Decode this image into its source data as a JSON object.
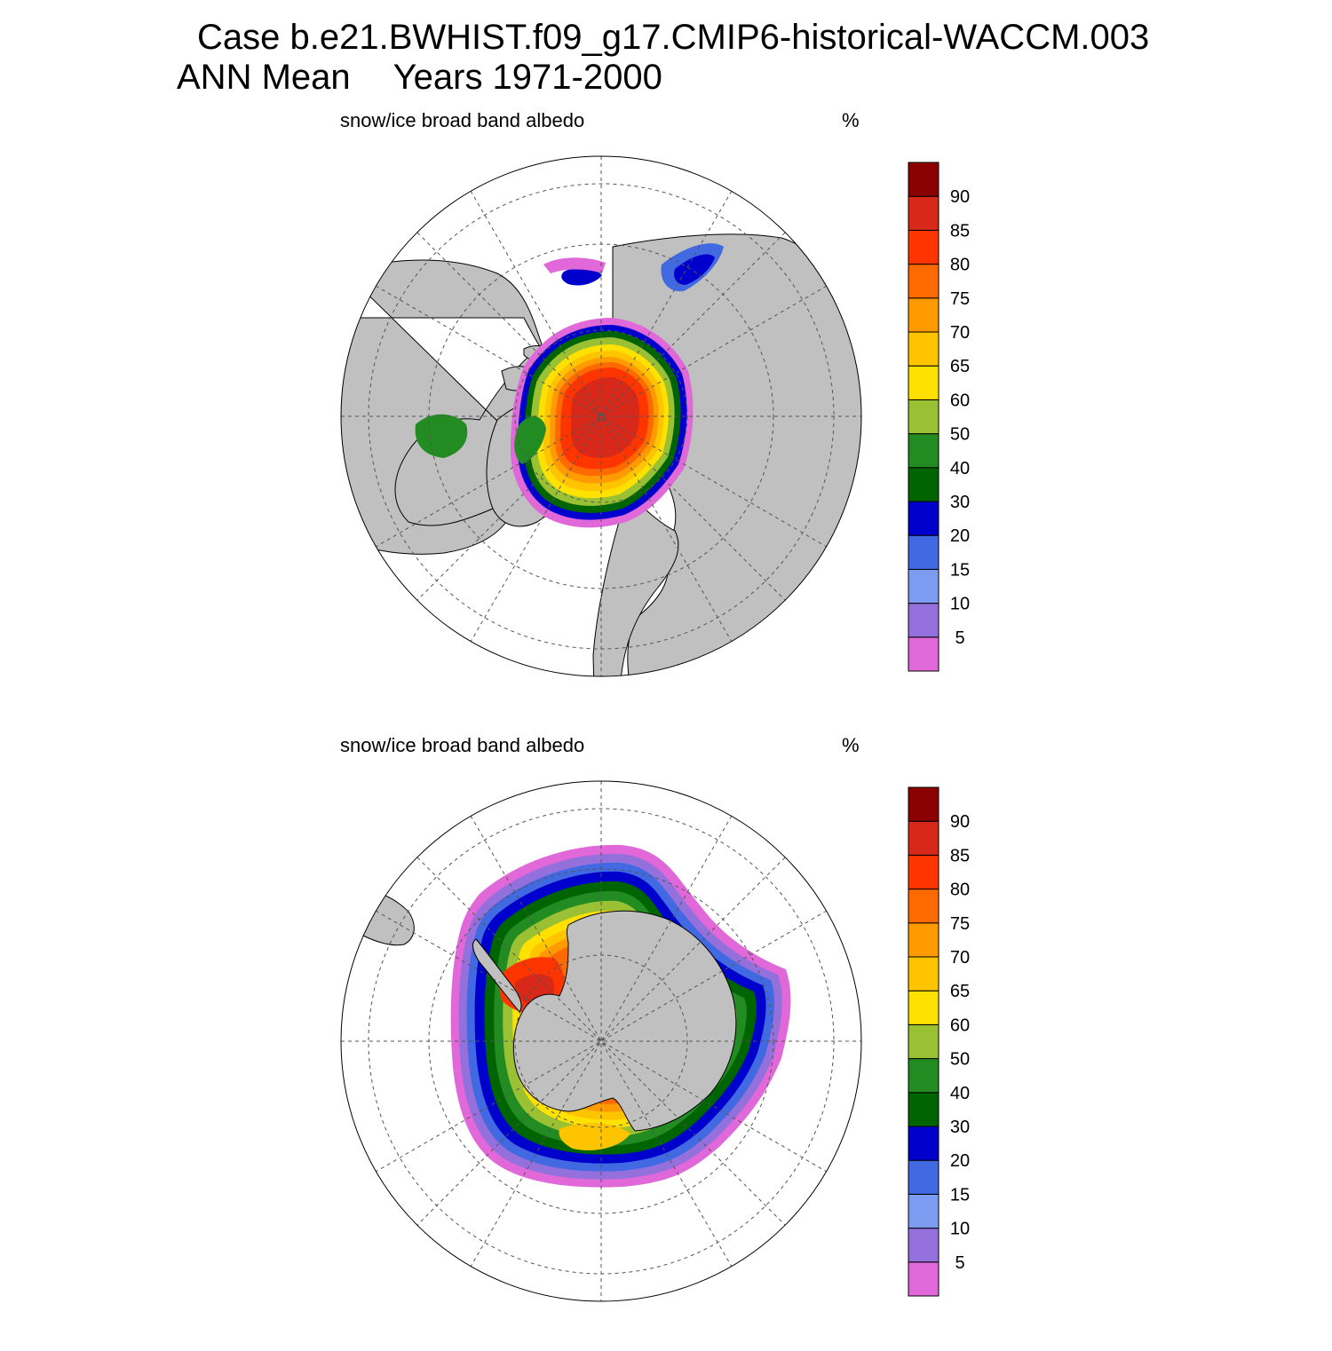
{
  "title": {
    "case": "Case b.e21.BWHIST.f09_g17.CMIP6-historical-WACCM.003",
    "season": "ANN Mean",
    "years": "Years 1971-2000"
  },
  "panels": [
    {
      "id": "north",
      "hemisphere": "NH",
      "variable": "snow/ice broad band albedo",
      "units": "%"
    },
    {
      "id": "south",
      "hemisphere": "SH",
      "variable": "snow/ice broad band albedo",
      "units": "%"
    }
  ],
  "colorbar": {
    "levels": [
      5,
      10,
      15,
      20,
      30,
      40,
      50,
      60,
      65,
      70,
      75,
      80,
      85,
      90
    ],
    "colors": [
      "#e068d8",
      "#9370db",
      "#7b9cf0",
      "#4169e1",
      "#0000cd",
      "#006400",
      "#228b22",
      "#9ac033",
      "#ffe100",
      "#ffc400",
      "#ff9b00",
      "#ff6a00",
      "#ff3500",
      "#d8281a",
      "#8b0000"
    ]
  },
  "colors": {
    "land": "#c0c0c0",
    "ocean": "#ffffff",
    "grid": "#555555"
  }
}
